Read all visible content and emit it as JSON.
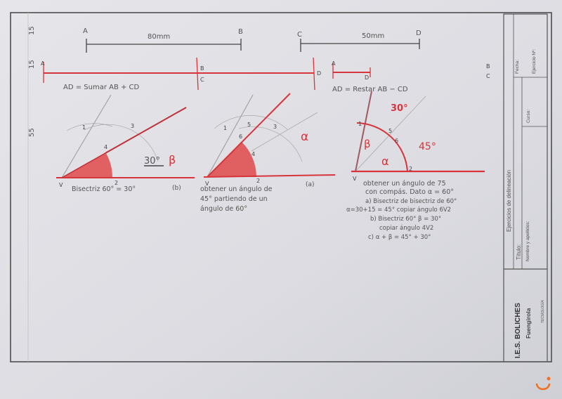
{
  "margin_dims": [
    "15",
    "15",
    "55"
  ],
  "segments": {
    "ab_label": "80mm",
    "cd_label": "50mm",
    "points": {
      "A": "A",
      "B": "B",
      "C": "C",
      "D": "D"
    },
    "sum_text": "AD = Sumar AB + CD",
    "diff_text": "AD = Restar AB − CD"
  },
  "angle_b": {
    "points": [
      "1",
      "3",
      "4",
      "2",
      "V"
    ],
    "value": "30°",
    "symbol": "β",
    "caption": "Bisectriz 60° = 30°",
    "tag": "(b)"
  },
  "angle_a": {
    "points": [
      "1",
      "5",
      "3",
      "6",
      "4",
      "2",
      "V"
    ],
    "symbol": "α",
    "caption": [
      "obtener un ángulo de",
      "45° partiendo de un",
      "ángulo de 60°"
    ],
    "tag": "(a)"
  },
  "angle_75": {
    "points": [
      "1",
      "5",
      "6",
      "2",
      "V"
    ],
    "labels": {
      "top": "30°",
      "beta": "β",
      "alpha": "α",
      "right": "45°"
    },
    "notes": [
      "obtener un ángulo de 75",
      "con compás. Dato α = 60°",
      "a) Bisectriz de bisectriz de 60°",
      "α=30+15 = 45° copiar ángulo 6V2",
      "b) Bisectriz 60° β = 30°",
      "copiar ángulo 4V2",
      "c) α + β = 45° + 30°"
    ]
  },
  "title_block": {
    "school": "I.E.S. BOLICHES",
    "city": "Fuengirola",
    "department": "TECNOLOGÍA",
    "title_label": "Título:",
    "title_value": "Ejercicios de delineación",
    "name_label": "Nombre y apellidos:",
    "course_label": "Curso:",
    "date_label": "Fecha:",
    "exercise_label": "Ejercicio Nº:"
  },
  "colors": {
    "paper": "#dcdce2",
    "red_pencil": "#d8343c",
    "graphite": "#555555"
  }
}
